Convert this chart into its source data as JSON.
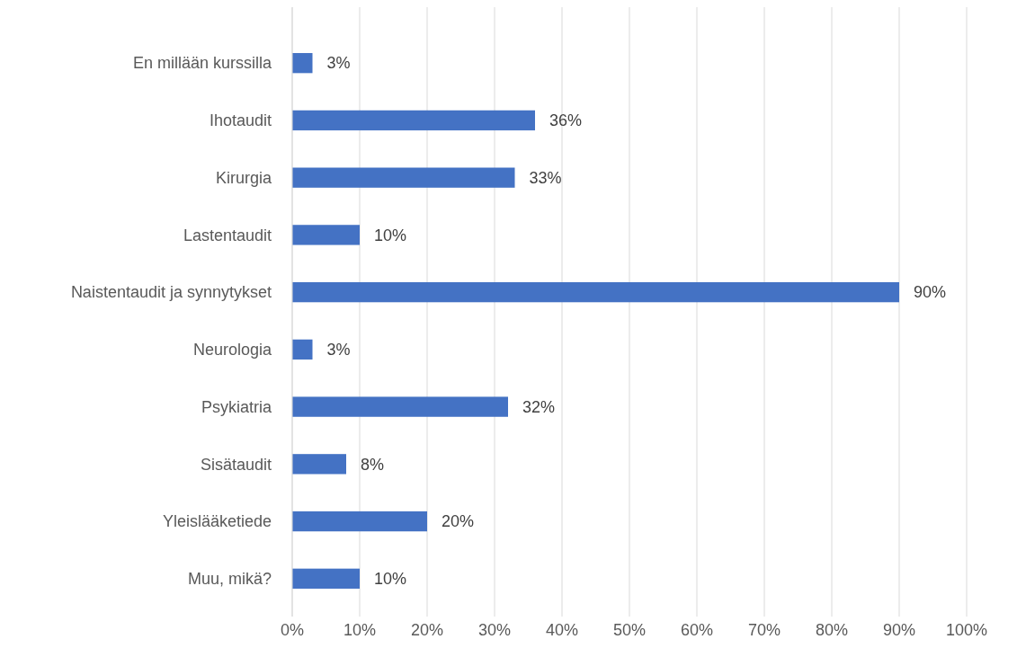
{
  "chart_data": {
    "type": "bar",
    "orientation": "horizontal",
    "categories": [
      "En millään kurssilla",
      "Ihotaudit",
      "Kirurgia",
      "Lastentaudit",
      "Naistentaudit ja synnytykset",
      "Neurologia",
      "Psykiatria",
      "Sisätaudit",
      "Yleislääketiede",
      "Muu, mikä?"
    ],
    "values": [
      3,
      36,
      33,
      10,
      90,
      3,
      32,
      8,
      20,
      10
    ],
    "value_labels": [
      "3%",
      "36%",
      "33%",
      "10%",
      "90%",
      "3%",
      "32%",
      "8%",
      "20%",
      "10%"
    ],
    "color": "#4472c4",
    "xlim": [
      0,
      100
    ],
    "xticks": [
      {
        "value": 0,
        "label": "0%"
      },
      {
        "value": 10,
        "label": "10%"
      },
      {
        "value": 20,
        "label": "20%"
      },
      {
        "value": 30,
        "label": "30%"
      },
      {
        "value": 40,
        "label": "40%"
      },
      {
        "value": 50,
        "label": "50%"
      },
      {
        "value": 60,
        "label": "60%"
      },
      {
        "value": 70,
        "label": "70%"
      },
      {
        "value": 80,
        "label": "80%"
      },
      {
        "value": 90,
        "label": "90%"
      },
      {
        "value": 100,
        "label": "100%"
      }
    ],
    "grid": "x"
  }
}
